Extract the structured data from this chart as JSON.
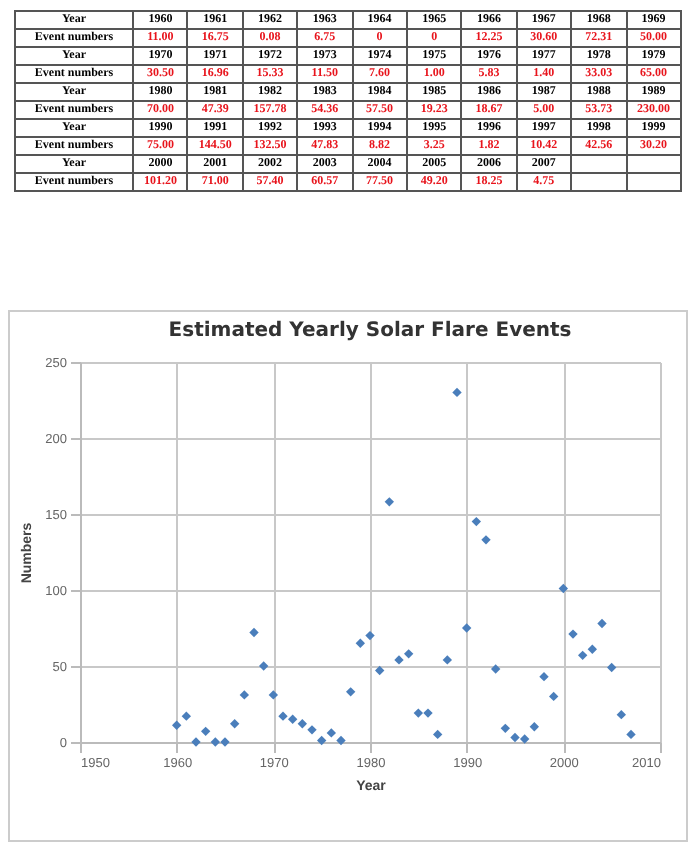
{
  "chart_data": {
    "type": "scatter",
    "title": "Estimated Yearly Solar Flare Events",
    "xlabel": "Year",
    "ylabel": "Numbers",
    "annotations": [
      "Year",
      "1960",
      "1961",
      "1962",
      "1963",
      "1964",
      "1965",
      "1966",
      "1967",
      "1968",
      "1969",
      "Event numbers",
      "11.00",
      "16.75",
      "0.08",
      "6.75",
      "0",
      "0",
      "12.25",
      "30.60",
      "72.31",
      "50.00",
      "Year",
      "1970",
      "1971",
      "1972",
      "1973",
      "1974",
      "1975",
      "1976",
      "1977",
      "1978",
      "1979",
      "Event numbers",
      "30.50",
      "16.96",
      "15.33",
      "11.50",
      "7.60",
      "1.00",
      "5.83",
      "1.40",
      "33.03",
      "65.00",
      "Year",
      "1980",
      "1981",
      "1982",
      "1983",
      "1984",
      "1985",
      "1986",
      "1987",
      "1988",
      "1989",
      "Event numbers",
      "70.00",
      "47.39",
      "157.78",
      "54.36",
      "57.50",
      "19.23",
      "18.67",
      "5.00",
      "53.73",
      "230.00",
      "Year",
      "1990",
      "1991",
      "1992",
      "1993",
      "1994",
      "1995",
      "1996",
      "1997",
      "1998",
      "1999",
      "Event numbers",
      "75.00",
      "144.50",
      "132.50",
      "47.83",
      "8.82",
      "3.25",
      "1.82",
      "10.42",
      "42.56",
      "30.20",
      "Year",
      "2000",
      "2001",
      "2002",
      "2003",
      "2004",
      "2005",
      "2006",
      "2007",
      "Event numbers",
      "101.20",
      "71.00",
      "57.40",
      "60.57",
      "77.50",
      "49.20",
      "18.25",
      "4.75"
    ],
    "x": [
      1960,
      1961,
      1962,
      1963,
      1964,
      1965,
      1966,
      1967,
      1968,
      1969,
      1970,
      1971,
      1972,
      1973,
      1974,
      1975,
      1976,
      1977,
      1978,
      1979,
      1980,
      1981,
      1982,
      1983,
      1984,
      1985,
      1986,
      1987,
      1988,
      1989,
      1990,
      1991,
      1992,
      1993,
      1994,
      1995,
      1996,
      1997,
      1998,
      1999,
      2000,
      2001,
      2002,
      2003,
      2004,
      2005,
      2006,
      2007
    ],
    "series": [
      {
        "color": "#4a7ebb",
        "values": [
          11,
          17,
          0,
          7,
          0,
          0,
          12,
          31,
          72,
          50,
          31,
          17,
          15,
          12,
          8,
          1,
          6,
          1,
          33,
          65,
          70,
          47,
          158,
          54,
          58,
          19,
          19,
          5,
          54,
          230,
          75,
          145,
          133,
          48,
          9,
          3,
          2,
          10,
          43,
          30,
          101,
          71,
          57,
          61,
          78,
          49,
          18,
          5
        ]
      }
    ],
    "xlim": [
      1950,
      2010
    ],
    "xticks": [
      1950,
      1960,
      1970,
      1980,
      1990,
      2000,
      2010
    ],
    "ylim": [
      0,
      250
    ],
    "yticks": [
      0,
      50,
      100,
      150,
      200,
      250
    ],
    "grid": true,
    "marker": "diamond"
  }
}
